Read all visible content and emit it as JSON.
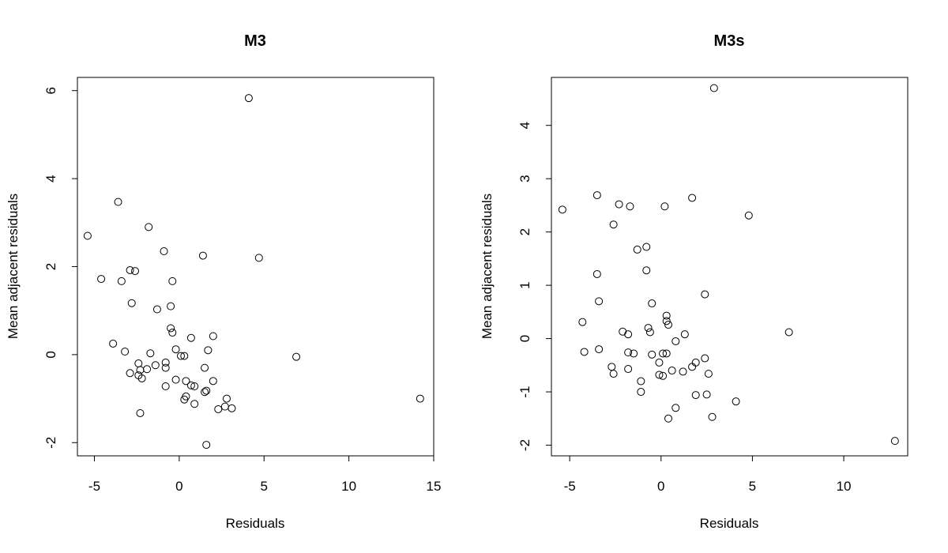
{
  "chart_data": [
    {
      "type": "scatter",
      "title": "M3",
      "xlabel": "Residuals",
      "ylabel": "Mean adjacent residuals",
      "xlim": [
        -6.0,
        15.0
      ],
      "ylim": [
        -2.3,
        6.3
      ],
      "xticks": [
        -5,
        0,
        5,
        10,
        15
      ],
      "yticks": [
        -2,
        0,
        2,
        4,
        6
      ],
      "grid": false,
      "marker": "open-circle",
      "points": [
        [
          -5.4,
          2.7
        ],
        [
          -4.6,
          1.72
        ],
        [
          -3.6,
          3.47
        ],
        [
          -3.4,
          1.67
        ],
        [
          -2.9,
          1.92
        ],
        [
          -2.6,
          1.9
        ],
        [
          -2.8,
          1.17
        ],
        [
          -1.8,
          2.9
        ],
        [
          -0.9,
          2.35
        ],
        [
          -0.4,
          1.67
        ],
        [
          -1.3,
          1.03
        ],
        [
          -0.5,
          1.1
        ],
        [
          1.4,
          2.25
        ],
        [
          4.7,
          2.2
        ],
        [
          4.1,
          5.83
        ],
        [
          -3.9,
          0.25
        ],
        [
          -3.2,
          0.07
        ],
        [
          -0.5,
          0.6
        ],
        [
          -0.4,
          0.5
        ],
        [
          -0.2,
          0.12
        ],
        [
          0.1,
          -0.03
        ],
        [
          0.3,
          -0.03
        ],
        [
          0.7,
          0.38
        ],
        [
          1.7,
          0.1
        ],
        [
          2.0,
          0.42
        ],
        [
          -1.7,
          0.03
        ],
        [
          -2.4,
          -0.2
        ],
        [
          -2.3,
          -0.35
        ],
        [
          -1.9,
          -0.33
        ],
        [
          -1.4,
          -0.24
        ],
        [
          -0.8,
          -0.18
        ],
        [
          -0.8,
          -0.3
        ],
        [
          -2.9,
          -0.42
        ],
        [
          -2.4,
          -0.47
        ],
        [
          -2.2,
          -0.54
        ],
        [
          -0.2,
          -0.57
        ],
        [
          0.4,
          -0.6
        ],
        [
          0.7,
          -0.7
        ],
        [
          0.9,
          -0.72
        ],
        [
          1.5,
          -0.3
        ],
        [
          2.0,
          -0.6
        ],
        [
          -0.8,
          -0.72
        ],
        [
          1.6,
          -0.82
        ],
        [
          1.5,
          -0.85
        ],
        [
          0.4,
          -0.95
        ],
        [
          0.3,
          -1.02
        ],
        [
          0.9,
          -1.12
        ],
        [
          2.3,
          -1.24
        ],
        [
          2.7,
          -1.18
        ],
        [
          2.8,
          -1.0
        ],
        [
          3.1,
          -1.22
        ],
        [
          -2.3,
          -1.33
        ],
        [
          6.9,
          -0.05
        ],
        [
          14.2,
          -1.0
        ],
        [
          1.6,
          -2.05
        ]
      ]
    },
    {
      "type": "scatter",
      "title": "M3s",
      "xlabel": "Residuals",
      "ylabel": "Mean adjacent residuals",
      "xlim": [
        -6.0,
        13.5
      ],
      "ylim": [
        -2.2,
        4.9
      ],
      "xticks": [
        -5,
        0,
        5,
        10
      ],
      "yticks": [
        -2,
        -1,
        0,
        1,
        2,
        3,
        4
      ],
      "grid": false,
      "marker": "open-circle",
      "points": [
        [
          -5.4,
          2.42
        ],
        [
          -3.5,
          2.69
        ],
        [
          -2.3,
          2.52
        ],
        [
          -1.7,
          2.48
        ],
        [
          0.2,
          2.48
        ],
        [
          1.7,
          2.64
        ],
        [
          4.8,
          2.31
        ],
        [
          -2.6,
          2.14
        ],
        [
          2.9,
          4.7
        ],
        [
          -1.3,
          1.67
        ],
        [
          -0.8,
          1.72
        ],
        [
          -0.8,
          1.28
        ],
        [
          -3.5,
          1.21
        ],
        [
          -0.5,
          0.66
        ],
        [
          -3.4,
          0.7
        ],
        [
          2.4,
          0.83
        ],
        [
          -4.3,
          0.31
        ],
        [
          -2.1,
          0.13
        ],
        [
          -0.7,
          0.2
        ],
        [
          -0.6,
          0.12
        ],
        [
          0.3,
          0.43
        ],
        [
          0.3,
          0.33
        ],
        [
          0.4,
          0.26
        ],
        [
          1.3,
          0.08
        ],
        [
          7.0,
          0.12
        ],
        [
          -3.4,
          -0.2
        ],
        [
          -4.2,
          -0.25
        ],
        [
          -1.8,
          -0.26
        ],
        [
          -1.8,
          0.08
        ],
        [
          -1.5,
          -0.28
        ],
        [
          -0.5,
          -0.3
        ],
        [
          0.1,
          -0.28
        ],
        [
          0.3,
          -0.28
        ],
        [
          0.8,
          -0.05
        ],
        [
          2.4,
          -0.37
        ],
        [
          -0.1,
          -0.45
        ],
        [
          1.9,
          -0.45
        ],
        [
          1.7,
          -0.53
        ],
        [
          -2.7,
          -0.53
        ],
        [
          -1.8,
          -0.57
        ],
        [
          0.6,
          -0.6
        ],
        [
          1.2,
          -0.62
        ],
        [
          2.6,
          -0.66
        ],
        [
          -2.6,
          -0.66
        ],
        [
          -0.1,
          -0.68
        ],
        [
          0.1,
          -0.7
        ],
        [
          -1.1,
          -0.8
        ],
        [
          -1.1,
          -1.0
        ],
        [
          1.9,
          -1.06
        ],
        [
          2.5,
          -1.05
        ],
        [
          4.1,
          -1.18
        ],
        [
          0.8,
          -1.3
        ],
        [
          0.4,
          -1.5
        ],
        [
          2.8,
          -1.47
        ],
        [
          12.8,
          -1.92
        ]
      ]
    }
  ]
}
